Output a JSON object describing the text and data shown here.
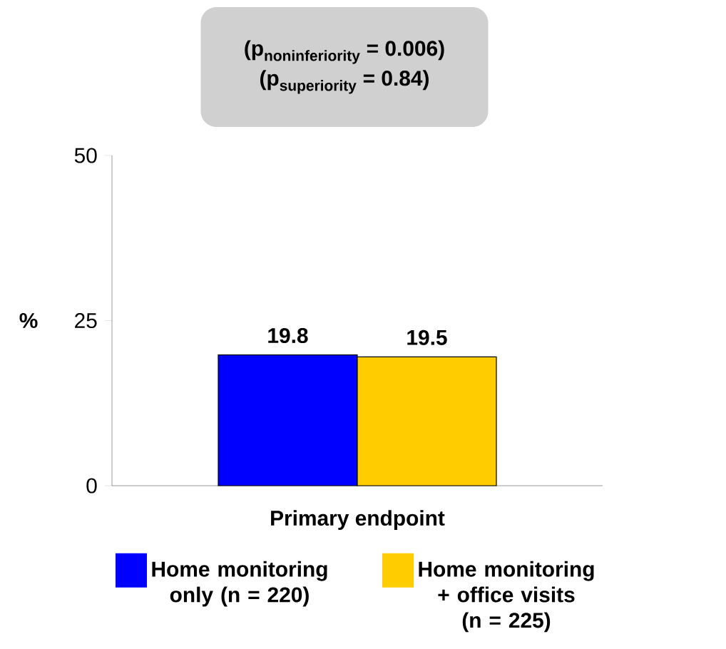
{
  "chart_data": {
    "type": "bar",
    "categories": [
      "Primary endpoint"
    ],
    "series": [
      {
        "name": "Home monitoring only (n = 220)",
        "color": "#0000ff",
        "values": [
          19.8
        ]
      },
      {
        "name": "Home monitoring + office visits (n = 225)",
        "color": "#ffcc00",
        "values": [
          19.5
        ]
      }
    ],
    "ylabel": "%",
    "ylim": [
      0,
      50
    ],
    "yticks": [
      0,
      25,
      50
    ],
    "data_labels": true,
    "legend": "bottom",
    "annotations": [
      "\\textbf{(p}_{\\textbf{noninferiority}}\\textbf{ = 0.006)}",
      "\\textbf{(p}_{\\textbf{superiority}}\\textbf{ = 0.84)}"
    ]
  }
}
